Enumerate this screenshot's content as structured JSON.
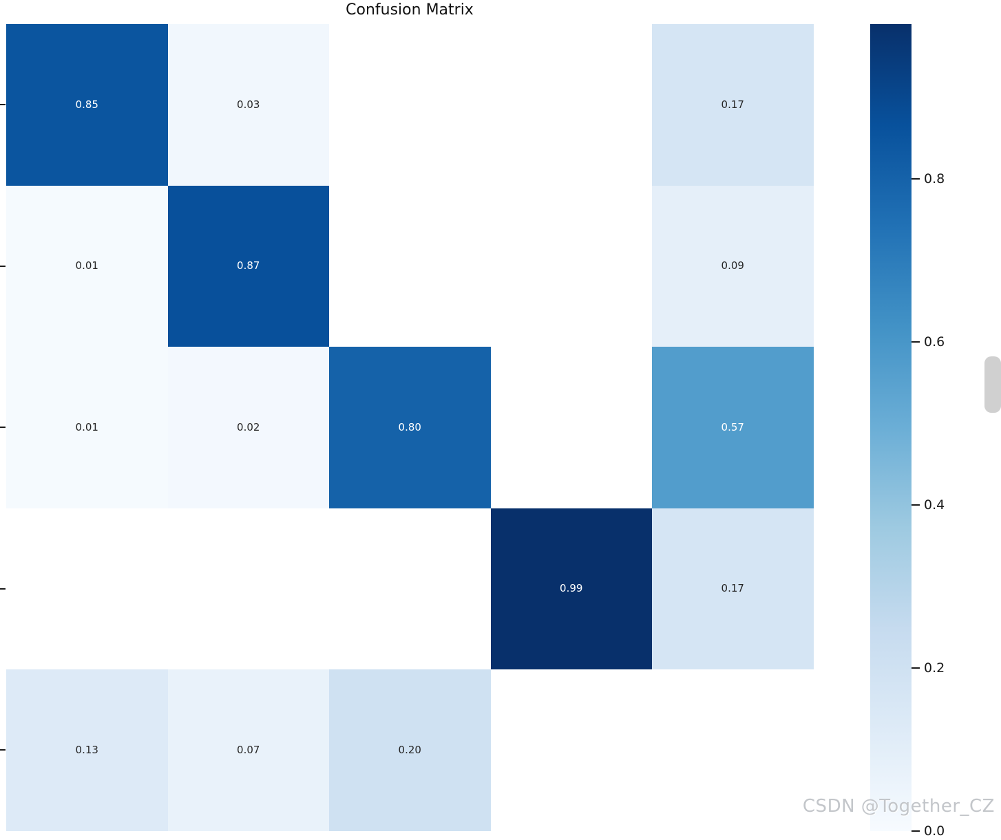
{
  "title": "Confusion Matrix",
  "watermark": "CSDN @Together_CZ",
  "chart_data": {
    "type": "heatmap",
    "title": "Confusion Matrix",
    "rows": 5,
    "cols": 5,
    "matrix": [
      [
        0.85,
        0.03,
        null,
        null,
        0.17
      ],
      [
        0.01,
        0.87,
        null,
        null,
        0.09
      ],
      [
        0.01,
        0.02,
        0.8,
        null,
        0.57
      ],
      [
        null,
        null,
        null,
        0.99,
        0.17
      ],
      [
        0.13,
        0.07,
        0.2,
        null,
        null
      ]
    ],
    "annotations": [
      [
        "0.85",
        "0.03",
        "",
        "",
        "0.17"
      ],
      [
        "0.01",
        "0.87",
        "",
        "",
        "0.09"
      ],
      [
        "0.01",
        "0.02",
        "0.80",
        "",
        "0.57"
      ],
      [
        "",
        "",
        "",
        "0.99",
        "0.17"
      ],
      [
        "0.13",
        "0.07",
        "0.20",
        "",
        ""
      ]
    ],
    "vmin": 0.0,
    "vmax": 0.99,
    "colormap_name": "Blues",
    "colormap_stops": [
      "#f7fbff",
      "#deebf7",
      "#c6dbef",
      "#9ecae1",
      "#6baed6",
      "#4292c6",
      "#2171b5",
      "#08519c",
      "#08306b"
    ],
    "masked_color": "#ffffff",
    "annot_color_dark_cell": "#ffffff",
    "annot_color_light_cell": "#262626",
    "colorbar_ticks": [
      "0.8",
      "0.6",
      "0.4",
      "0.2",
      "0.0"
    ],
    "colorbar_tick_values": [
      0.8,
      0.6,
      0.4,
      0.2,
      0.0
    ],
    "grid": false,
    "legend_position": "right-colorbar",
    "x_axis_labels_visible": false,
    "y_axis_labels_visible": false
  }
}
